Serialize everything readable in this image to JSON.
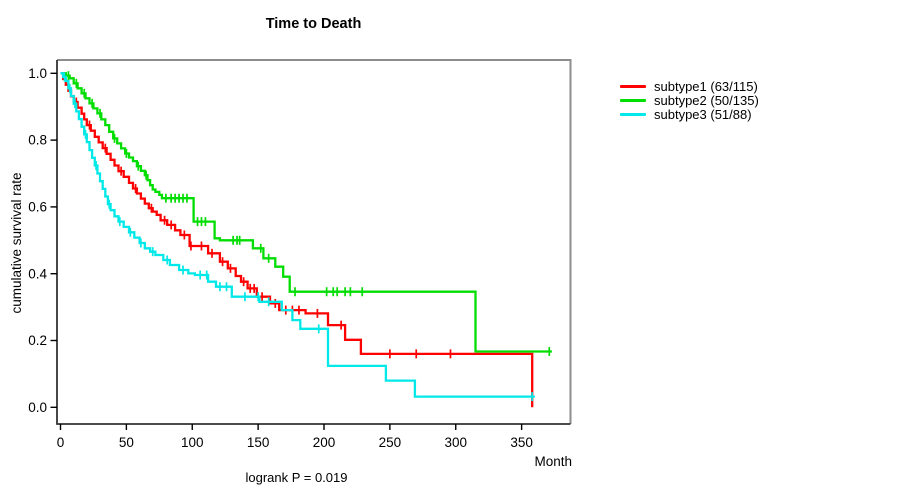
{
  "chart_data": {
    "type": "line",
    "subtype": "kaplan-meier-survival-steps",
    "title": "Time to Death",
    "xlabel": "Month",
    "ylabel": "cumulative survival rate",
    "caption": "logrank P = 0.019",
    "logrank_p": 0.019,
    "grid": false,
    "legend_position": "right-outside",
    "x_ticks": [
      0,
      50,
      100,
      150,
      200,
      250,
      300,
      350
    ],
    "y_ticks": [
      "0.0",
      "0.2",
      "0.4",
      "0.6",
      "0.8",
      "1.0"
    ],
    "xlim": [
      -3,
      387
    ],
    "ylim": [
      -0.05,
      1.05
    ],
    "axis_colors": {
      "box_top_right": "#8d8d8d",
      "box_left_bottom": "#333333",
      "tick": "#000000"
    },
    "series": [
      {
        "name": "subtype1",
        "label": "subtype1 (63/115)",
        "events": 63,
        "total": 115,
        "color": "#ff0000",
        "end_month": 358,
        "steps": [
          [
            0,
            1.0
          ],
          [
            2,
            0.983
          ],
          [
            4,
            0.966
          ],
          [
            6,
            0.948
          ],
          [
            8,
            0.931
          ],
          [
            10,
            0.914
          ],
          [
            13,
            0.897
          ],
          [
            16,
            0.879
          ],
          [
            18,
            0.862
          ],
          [
            20,
            0.845
          ],
          [
            23,
            0.828
          ],
          [
            26,
            0.81
          ],
          [
            29,
            0.793
          ],
          [
            32,
            0.776
          ],
          [
            35,
            0.759
          ],
          [
            38,
            0.741
          ],
          [
            41,
            0.724
          ],
          [
            44,
            0.707
          ],
          [
            48,
            0.69
          ],
          [
            52,
            0.672
          ],
          [
            55,
            0.655
          ],
          [
            58,
            0.64
          ],
          [
            61,
            0.625
          ],
          [
            64,
            0.61
          ],
          [
            67,
            0.596
          ],
          [
            70,
            0.586
          ],
          [
            73,
            0.576
          ],
          [
            76,
            0.56
          ],
          [
            81,
            0.546
          ],
          [
            87,
            0.53
          ],
          [
            91,
            0.516
          ],
          [
            98,
            0.483
          ],
          [
            112,
            0.461
          ],
          [
            121,
            0.436
          ],
          [
            127,
            0.416
          ],
          [
            133,
            0.393
          ],
          [
            137,
            0.376
          ],
          [
            142,
            0.356
          ],
          [
            149,
            0.331
          ],
          [
            159,
            0.311
          ],
          [
            166,
            0.291
          ],
          [
            186,
            0.281
          ],
          [
            203,
            0.246
          ],
          [
            216,
            0.202
          ],
          [
            228,
            0.16
          ],
          [
            358,
            0.0
          ]
        ],
        "censor_months": [
          12,
          22,
          34,
          46,
          57,
          69,
          79,
          84,
          94,
          99,
          107,
          115,
          123,
          129,
          139,
          144,
          147,
          153,
          163,
          171,
          176,
          181,
          195,
          213,
          250,
          270,
          296
        ]
      },
      {
        "name": "subtype2",
        "label": "subtype2 (50/135)",
        "events": 50,
        "total": 135,
        "color": "#00dd00",
        "end_month": 373,
        "steps": [
          [
            0,
            1.0
          ],
          [
            4,
            0.993
          ],
          [
            7,
            0.985
          ],
          [
            10,
            0.97
          ],
          [
            13,
            0.955
          ],
          [
            16,
            0.94
          ],
          [
            19,
            0.925
          ],
          [
            22,
            0.91
          ],
          [
            25,
            0.895
          ],
          [
            28,
            0.88
          ],
          [
            31,
            0.862
          ],
          [
            34,
            0.845
          ],
          [
            37,
            0.825
          ],
          [
            40,
            0.805
          ],
          [
            43,
            0.79
          ],
          [
            46,
            0.775
          ],
          [
            49,
            0.76
          ],
          [
            52,
            0.748
          ],
          [
            55,
            0.737
          ],
          [
            58,
            0.722
          ],
          [
            61,
            0.708
          ],
          [
            64,
            0.695
          ],
          [
            66,
            0.68
          ],
          [
            68,
            0.665
          ],
          [
            70,
            0.652
          ],
          [
            72,
            0.645
          ],
          [
            75,
            0.636
          ],
          [
            77,
            0.626
          ],
          [
            101,
            0.556
          ],
          [
            117,
            0.506
          ],
          [
            121,
            0.5
          ],
          [
            146,
            0.476
          ],
          [
            154,
            0.446
          ],
          [
            163,
            0.421
          ],
          [
            169,
            0.391
          ],
          [
            174,
            0.346
          ],
          [
            315,
            0.167
          ]
        ],
        "censor_months": [
          6,
          12,
          18,
          24,
          30,
          41,
          50,
          59,
          65,
          80,
          84,
          87,
          90,
          93,
          96,
          104,
          107,
          110,
          131,
          134,
          136,
          152,
          158,
          178,
          202,
          207,
          210,
          216,
          220,
          229,
          371
        ]
      },
      {
        "name": "subtype3",
        "label": "subtype3 (51/88)",
        "events": 51,
        "total": 88,
        "color": "#00e8e8",
        "end_month": 360,
        "steps": [
          [
            0,
            1.0
          ],
          [
            2,
            0.989
          ],
          [
            4,
            0.977
          ],
          [
            6,
            0.955
          ],
          [
            8,
            0.932
          ],
          [
            10,
            0.909
          ],
          [
            12,
            0.886
          ],
          [
            14,
            0.863
          ],
          [
            16,
            0.84
          ],
          [
            18,
            0.817
          ],
          [
            20,
            0.794
          ],
          [
            22,
            0.77
          ],
          [
            24,
            0.747
          ],
          [
            26,
            0.724
          ],
          [
            28,
            0.7
          ],
          [
            30,
            0.677
          ],
          [
            32,
            0.654
          ],
          [
            34,
            0.631
          ],
          [
            36,
            0.608
          ],
          [
            38,
            0.59
          ],
          [
            41,
            0.572
          ],
          [
            44,
            0.556
          ],
          [
            48,
            0.54
          ],
          [
            52,
            0.524
          ],
          [
            56,
            0.508
          ],
          [
            60,
            0.492
          ],
          [
            64,
            0.476
          ],
          [
            68,
            0.466
          ],
          [
            72,
            0.456
          ],
          [
            78,
            0.441
          ],
          [
            83,
            0.426
          ],
          [
            90,
            0.411
          ],
          [
            97,
            0.401
          ],
          [
            102,
            0.396
          ],
          [
            112,
            0.376
          ],
          [
            118,
            0.361
          ],
          [
            130,
            0.331
          ],
          [
            151,
            0.316
          ],
          [
            168,
            0.291
          ],
          [
            176,
            0.261
          ],
          [
            182,
            0.235
          ],
          [
            203,
            0.124
          ],
          [
            247,
            0.08
          ],
          [
            269,
            0.032
          ]
        ],
        "censor_months": [
          3,
          7,
          11,
          19,
          27,
          37,
          45,
          53,
          61,
          70,
          81,
          93,
          106,
          111,
          121,
          126,
          140,
          150,
          158,
          196,
          358
        ]
      }
    ]
  }
}
